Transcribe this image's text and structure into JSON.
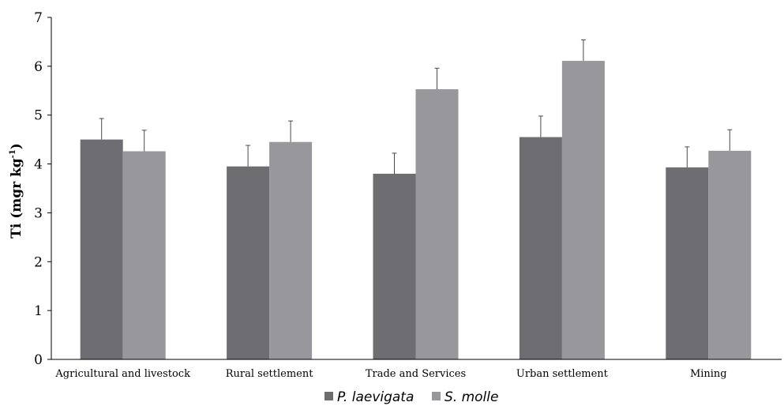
{
  "chart_data": {
    "type": "bar",
    "categories": [
      "Agricultural and livestock",
      "Rural settlement",
      "Trade and Services",
      "Urban settlement",
      "Mining"
    ],
    "series": [
      {
        "name": "P. laevigata",
        "color": "#6d6d72",
        "values": [
          4.5,
          3.95,
          3.8,
          4.55,
          3.93
        ],
        "errors": [
          0.43,
          0.43,
          0.42,
          0.43,
          0.42
        ]
      },
      {
        "name": "S. molle",
        "color": "#98989c",
        "values": [
          4.26,
          4.45,
          5.53,
          6.11,
          4.27
        ],
        "errors": [
          0.43,
          0.43,
          0.43,
          0.43,
          0.43
        ]
      }
    ],
    "ylabel": "Ti (mgr kg",
    "ylabel_superscript": "-1",
    "ylabel_close": ")",
    "ylim": [
      0,
      7
    ],
    "yticks": [
      "0",
      "1",
      "2",
      "3",
      "4",
      "5",
      "6",
      "7"
    ],
    "grid": false,
    "legend_position": "bottom"
  }
}
